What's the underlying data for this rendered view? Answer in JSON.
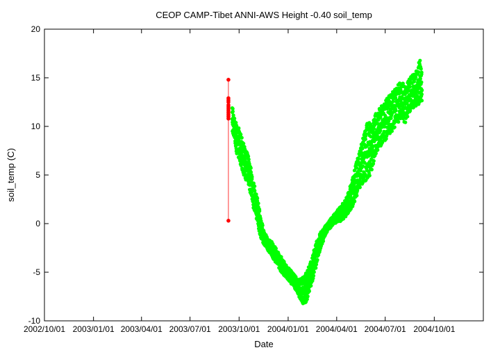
{
  "chart_data": {
    "type": "scatter",
    "title": "CEOP CAMP-Tibet ANNI-AWS Height -0.40 soil_temp",
    "xlabel": "Date",
    "ylabel": "soil_temp (C)",
    "ylim": [
      -10,
      20
    ],
    "xlim": [
      "2002/10/01",
      "2005/01/01"
    ],
    "grid": false,
    "legend": "none",
    "y_ticks": [
      -10,
      -5,
      0,
      5,
      10,
      15,
      20
    ],
    "x_ticks": [
      "2002/10/01",
      "2003/01/01",
      "2003/04/01",
      "2003/07/01",
      "2003/10/01",
      "2004/01/01",
      "2004/04/01",
      "2004/07/01",
      "2004/10/01"
    ],
    "x_ticklabels": [
      "2002/10/01",
      "2003/01/01",
      "2003/04/01",
      "2003/07/01",
      "2003/10/01",
      "2004/01/01",
      "2004/04/01",
      "2004/07/01",
      "2004/10/01"
    ],
    "series": [
      {
        "color": "#00ff00",
        "x": [
          "2003/09/18",
          "2003/09/22",
          "2003/09/26",
          "2003/09/30",
          "2003/10/04",
          "2003/10/10",
          "2003/10/16",
          "2003/10/22",
          "2003/10/28",
          "2003/11/04",
          "2003/11/10",
          "2003/11/16",
          "2003/11/24",
          "2003/12/02",
          "2003/12/10",
          "2003/12/18",
          "2003/12/26",
          "2004/01/03",
          "2004/01/10",
          "2004/01/17",
          "2004/01/24",
          "2004/01/31",
          "2004/02/07",
          "2004/02/14",
          "2004/02/21",
          "2004/02/28",
          "2004/03/06",
          "2004/03/13",
          "2004/03/20",
          "2004/03/27",
          "2004/04/03",
          "2004/04/10",
          "2004/04/17",
          "2004/04/24",
          "2004/05/01",
          "2004/05/08",
          "2004/05/15",
          "2004/05/22",
          "2004/05/29",
          "2004/06/05",
          "2004/06/12",
          "2004/06/19",
          "2004/06/26",
          "2004/07/03",
          "2004/07/10",
          "2004/07/17",
          "2004/07/24",
          "2004/07/31",
          "2004/08/07",
          "2004/08/14",
          "2004/08/21",
          "2004/08/28",
          "2004/09/04",
          "2004/09/08"
        ],
        "ymin": [
          9.0,
          8.8,
          7.0,
          6.5,
          5.8,
          4.8,
          4.0,
          3.0,
          1.4,
          0.0,
          -1.5,
          -2.2,
          -2.8,
          -3.5,
          -4.2,
          -5.0,
          -5.5,
          -6.0,
          -6.5,
          -7.0,
          -8.0,
          -8.6,
          -7.8,
          -6.5,
          -5.0,
          -3.2,
          -2.0,
          -1.0,
          -0.5,
          0.0,
          0.0,
          0.2,
          0.5,
          1.0,
          1.6,
          2.5,
          3.5,
          4.0,
          4.2,
          5.0,
          6.5,
          7.5,
          8.0,
          8.5,
          9.0,
          9.5,
          10.0,
          10.5,
          10.0,
          11.0,
          11.5,
          11.8,
          12.0,
          12.2
        ],
        "ymax": [
          12.5,
          11.0,
          10.5,
          10.2,
          9.5,
          8.5,
          7.5,
          6.5,
          4.5,
          3.0,
          1.0,
          -0.5,
          -1.5,
          -1.8,
          -2.5,
          -3.2,
          -4.0,
          -4.5,
          -5.0,
          -5.5,
          -5.6,
          -5.2,
          -4.5,
          -3.5,
          -2.0,
          -1.0,
          -0.5,
          0.0,
          0.5,
          1.0,
          1.5,
          2.0,
          2.5,
          3.5,
          5.0,
          6.5,
          8.0,
          9.5,
          11.0,
          10.5,
          11.5,
          12.0,
          12.5,
          13.0,
          13.5,
          14.0,
          14.5,
          14.8,
          14.5,
          15.0,
          15.5,
          16.0,
          17.2,
          16.0
        ]
      },
      {
        "color": "#ff0000",
        "x": [
          "2003/09/11",
          "2003/09/11",
          "2003/09/11",
          "2003/09/11",
          "2003/09/11",
          "2003/09/11",
          "2003/09/11",
          "2003/09/11",
          "2003/09/11",
          "2003/09/11",
          "2003/09/11",
          "2003/09/11",
          "2003/09/11"
        ],
        "y": [
          14.8,
          0.3,
          12.9,
          12.7,
          12.5,
          12.2,
          12.0,
          11.8,
          11.6,
          11.4,
          11.2,
          11.0,
          10.8
        ]
      }
    ]
  }
}
